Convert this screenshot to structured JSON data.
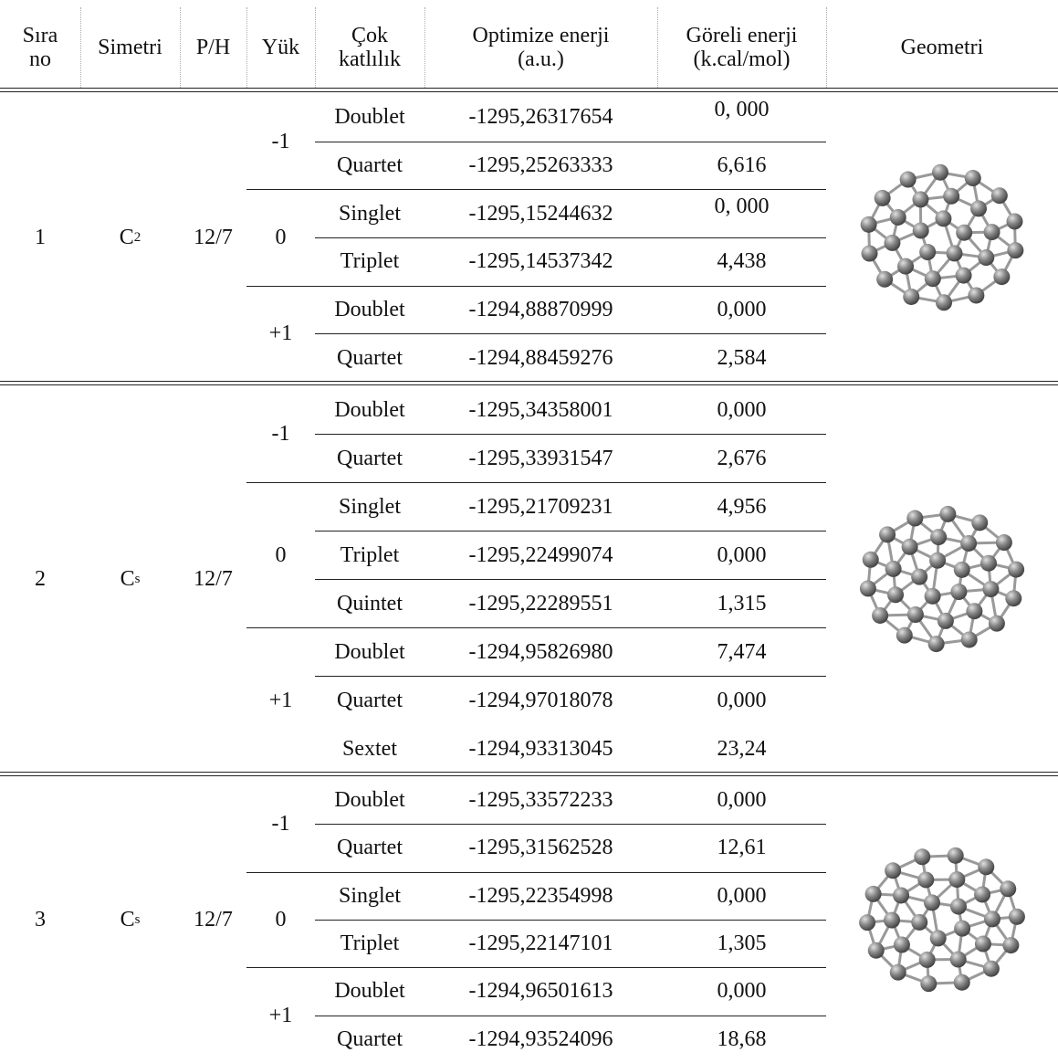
{
  "header": {
    "columns": [
      [
        "Sıra",
        "no"
      ],
      [
        "Simetri"
      ],
      [
        "P/H"
      ],
      [
        "Yük"
      ],
      [
        "Çok",
        "katlılık"
      ],
      [
        "Optimize enerji",
        "(a.u.)"
      ],
      [
        "Göreli enerji",
        "(k.cal/mol)"
      ],
      [
        "Geometri"
      ]
    ]
  },
  "table": {
    "groups": [
      {
        "no": "1",
        "symmetry": {
          "base": "C",
          "sub": "2"
        },
        "ph": "12/7",
        "charges": [
          {
            "charge": "-1",
            "states": [
              {
                "multiplicity": "Doublet",
                "energy": "-1295,26317654",
                "relative": "0, 000"
              },
              {
                "multiplicity": "Quartet",
                "energy": "-1295,25263333",
                "relative": "6,616"
              }
            ]
          },
          {
            "charge": "0",
            "states": [
              {
                "multiplicity": "Singlet",
                "energy": "-1295,15244632",
                "relative": "0, 000"
              },
              {
                "multiplicity": "Triplet",
                "energy": "-1295,14537342",
                "relative": "4,438"
              }
            ]
          },
          {
            "charge": "+1",
            "states": [
              {
                "multiplicity": "Doublet",
                "energy": "-1294,88870999",
                "relative": "0,000"
              },
              {
                "multiplicity": "Quartet",
                "energy": "-1294,88459276",
                "relative": "2,584"
              }
            ]
          }
        ]
      },
      {
        "no": "2",
        "symmetry": {
          "base": "C",
          "sub": "s"
        },
        "ph": "12/7",
        "charges": [
          {
            "charge": "-1",
            "states": [
              {
                "multiplicity": "Doublet",
                "energy": "-1295,34358001",
                "relative": "0,000"
              },
              {
                "multiplicity": "Quartet",
                "energy": "-1295,33931547",
                "relative": "2,676"
              }
            ]
          },
          {
            "charge": "0",
            "states": [
              {
                "multiplicity": "Singlet",
                "energy": "-1295,21709231",
                "relative": "4,956"
              },
              {
                "multiplicity": "Triplet",
                "energy": "-1295,22499074",
                "relative": "0,000"
              },
              {
                "multiplicity": "Quintet",
                "energy": "-1295,22289551",
                "relative": "1,315"
              }
            ]
          },
          {
            "charge": "+1",
            "states": [
              {
                "multiplicity": "Doublet",
                "energy": "-1294,95826980",
                "relative": "7,474"
              },
              {
                "multiplicity": "Quartet",
                "energy": "-1294,97018078",
                "relative": "0,000"
              },
              {
                "multiplicity": "Sextet",
                "energy": "-1294,93313045",
                "relative": "23,24"
              }
            ]
          }
        ]
      },
      {
        "no": "3",
        "symmetry": {
          "base": "C",
          "sub": "s"
        },
        "ph": "12/7",
        "charges": [
          {
            "charge": "-1",
            "states": [
              {
                "multiplicity": "Doublet",
                "energy": "-1295,33572233",
                "relative": "0,000"
              },
              {
                "multiplicity": "Quartet",
                "energy": "-1295,31562528",
                "relative": "12,61"
              }
            ]
          },
          {
            "charge": "0",
            "states": [
              {
                "multiplicity": "Singlet",
                "energy": "-1295,22354998",
                "relative": "0,000"
              },
              {
                "multiplicity": "Triplet",
                "energy": "-1295,22147101",
                "relative": "1,305"
              }
            ]
          },
          {
            "charge": "+1",
            "states": [
              {
                "multiplicity": "Doublet",
                "energy": "-1294,96501613",
                "relative": "0,000"
              },
              {
                "multiplicity": "Quartet",
                "energy": "-1294,93524096",
                "relative": "18,68"
              }
            ]
          }
        ]
      }
    ]
  }
}
